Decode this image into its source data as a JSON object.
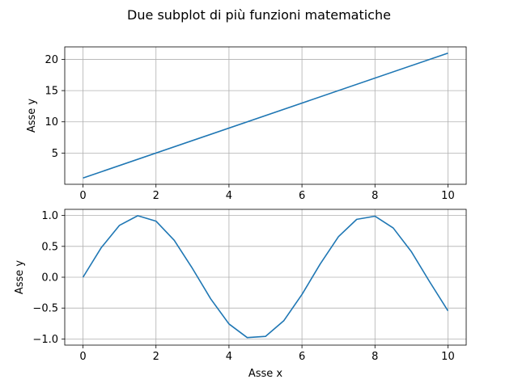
{
  "figure": {
    "title": "Due subplot di più funzioni matematiche"
  },
  "chart_data": [
    {
      "type": "line",
      "title": "",
      "xlabel": "",
      "ylabel": "Asse y",
      "xlim": [
        -0.5,
        10.5
      ],
      "ylim": [
        0,
        22
      ],
      "xticks": [
        0,
        2,
        4,
        6,
        8,
        10
      ],
      "yticks": [
        5,
        10,
        15,
        20
      ],
      "grid": true,
      "color": "#1f77b4",
      "series": [
        {
          "x": [
            0,
            10
          ],
          "y": [
            1,
            21
          ]
        }
      ]
    },
    {
      "type": "line",
      "title": "",
      "xlabel": "Asse x",
      "ylabel": "Asse y",
      "xlim": [
        -0.5,
        10.5
      ],
      "ylim": [
        -1.1,
        1.1
      ],
      "xticks": [
        0,
        2,
        4,
        6,
        8,
        10
      ],
      "yticks": [
        -1.0,
        -0.5,
        0.0,
        0.5,
        1.0
      ],
      "ytick_labels": [
        "−1.0",
        "−0.5",
        "0.0",
        "0.5",
        "1.0"
      ],
      "grid": true,
      "color": "#1f77b4",
      "series": [
        {
          "x": [
            0,
            0.5,
            1,
            1.5,
            2,
            2.5,
            3,
            3.5,
            4,
            4.5,
            5,
            5.5,
            6,
            6.5,
            7,
            7.5,
            8,
            8.5,
            9,
            9.5,
            10
          ],
          "y": [
            0.0,
            0.479,
            0.841,
            0.997,
            0.909,
            0.598,
            0.141,
            -0.351,
            -0.757,
            -0.978,
            -0.959,
            -0.706,
            -0.279,
            0.215,
            0.657,
            0.938,
            0.989,
            0.798,
            0.412,
            -0.075,
            -0.544
          ]
        }
      ]
    }
  ]
}
